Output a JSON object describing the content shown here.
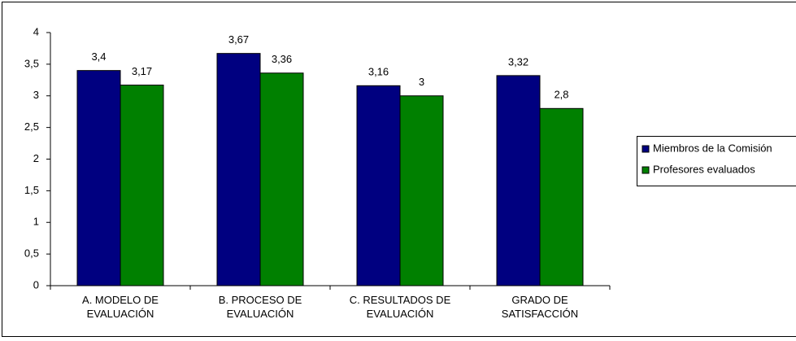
{
  "chart_data": {
    "type": "bar",
    "categories": [
      "A. MODELO DE EVALUACIÓN",
      "B. PROCESO DE EVALUACIÓN",
      "C. RESULTADOS DE EVALUACIÓN",
      "GRADO DE SATISFACCIÓN"
    ],
    "series": [
      {
        "name": "Miembros de la Comisión",
        "color": "#000080",
        "values": [
          3.4,
          3.67,
          3.16,
          3.32
        ],
        "value_labels": [
          "3,4",
          "3,67",
          "3,16",
          "3,32"
        ]
      },
      {
        "name": "Profesores evaluados",
        "color": "#008000",
        "values": [
          3.17,
          3.36,
          3,
          2.8
        ],
        "value_labels": [
          "3,17",
          "3,36",
          "3",
          "2,8"
        ]
      }
    ],
    "ylim": [
      0,
      4
    ],
    "yticks": [
      0,
      {
        "value": 0.5,
        "label": "0,5"
      },
      1,
      {
        "value": 1.5,
        "label": "1,5"
      },
      2,
      {
        "value": 2.5,
        "label": "2,5"
      },
      3,
      {
        "value": 3.5,
        "label": "3,5"
      },
      4
    ],
    "legend": "right"
  }
}
